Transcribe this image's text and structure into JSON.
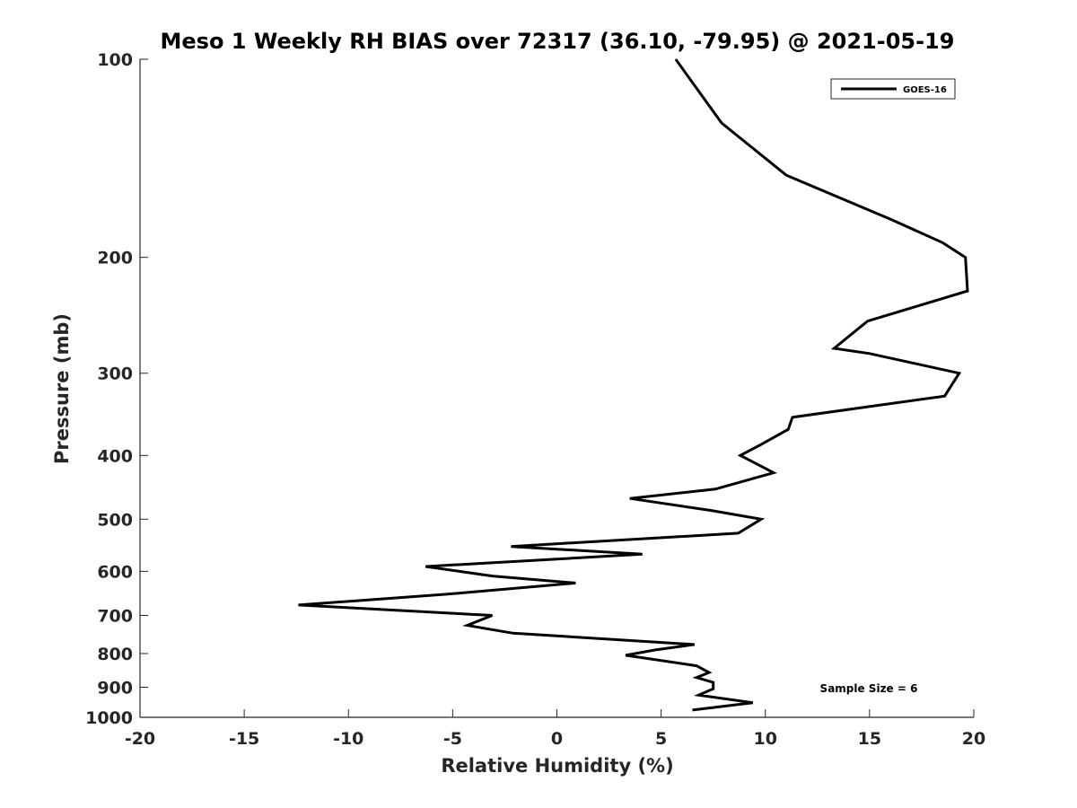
{
  "chart_data": {
    "type": "line",
    "title": "Meso 1 Weekly RH BIAS over 72317 (36.10, -79.95) @ 2021-05-19",
    "xlabel": "Relative Humidity (%)",
    "ylabel": "Pressure (mb)",
    "xlim": [
      -20,
      20
    ],
    "ylim": [
      100,
      1000
    ],
    "yscale": "log",
    "y_reversed": true,
    "grid": false,
    "legend_position": "top-right",
    "x_ticks": [
      -20,
      -15,
      -10,
      -5,
      0,
      5,
      10,
      15,
      20
    ],
    "x_tick_labels": [
      "-20",
      "-15",
      "-10",
      "-5",
      "0",
      "5",
      "10",
      "15",
      "20"
    ],
    "y_ticks": [
      100,
      200,
      300,
      400,
      500,
      600,
      700,
      800,
      900,
      1000
    ],
    "y_tick_labels": [
      "100",
      "200",
      "300",
      "400",
      "500",
      "600",
      "700",
      "800",
      "900",
      "1000"
    ],
    "series": [
      {
        "name": "GOES-16",
        "color": "#000000",
        "points": [
          [
            5.7,
            100
          ],
          [
            7.9,
            125
          ],
          [
            11.0,
            150
          ],
          [
            16.0,
            175
          ],
          [
            18.5,
            190
          ],
          [
            19.6,
            200
          ],
          [
            19.7,
            225
          ],
          [
            14.9,
            250
          ],
          [
            13.3,
            275
          ],
          [
            15.0,
            280
          ],
          [
            19.3,
            300
          ],
          [
            18.6,
            325
          ],
          [
            11.3,
            350
          ],
          [
            11.1,
            365
          ],
          [
            9.8,
            385
          ],
          [
            8.8,
            400
          ],
          [
            10.4,
            425
          ],
          [
            7.6,
            450
          ],
          [
            3.5,
            465
          ],
          [
            7.4,
            485
          ],
          [
            9.8,
            500
          ],
          [
            8.7,
            525
          ],
          [
            -2.2,
            550
          ],
          [
            4.1,
            565
          ],
          [
            -6.3,
            590
          ],
          [
            -3.1,
            610
          ],
          [
            0.9,
            625
          ],
          [
            -5.3,
            650
          ],
          [
            -12.4,
            675
          ],
          [
            -3.1,
            700
          ],
          [
            -4.3,
            725
          ],
          [
            -2.1,
            745
          ],
          [
            6.6,
            775
          ],
          [
            4.7,
            790
          ],
          [
            3.3,
            805
          ],
          [
            6.7,
            835
          ],
          [
            7.3,
            855
          ],
          [
            6.7,
            870
          ],
          [
            7.5,
            885
          ],
          [
            7.5,
            905
          ],
          [
            6.8,
            925
          ],
          [
            9.4,
            950
          ],
          [
            6.5,
            975
          ]
        ]
      }
    ],
    "annotations": [
      {
        "text": "Sample Size = 6"
      }
    ]
  }
}
